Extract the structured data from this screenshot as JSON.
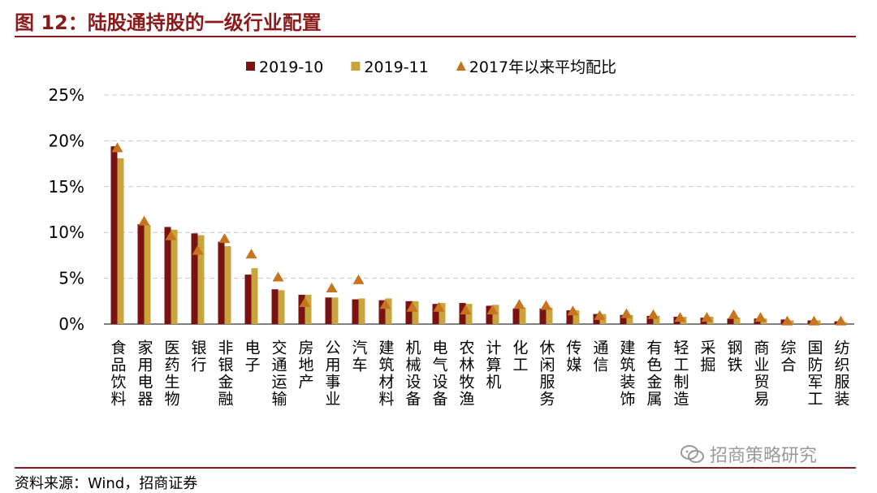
{
  "header": {
    "title": "图 12：陆股通持股的一级行业配置"
  },
  "footer": {
    "source": "资料来源：Wind，招商证券",
    "watermark": "招商策略研究"
  },
  "colors": {
    "series1": "#7a1212",
    "series2": "#c9a43d",
    "series3": "#c8731e",
    "grid": "#c8c8c8",
    "accent": "#8b1a1a"
  },
  "chart_data": {
    "type": "bar",
    "legend_position": "top",
    "grid": true,
    "ylim": [
      0,
      25
    ],
    "yticks": [
      "0%",
      "5%",
      "10%",
      "15%",
      "20%",
      "25%"
    ],
    "categories": [
      "食品饮料",
      "家用电器",
      "医药生物",
      "银行",
      "非银金融",
      "电子",
      "交通运输",
      "房地产",
      "公用事业",
      "汽车",
      "建筑材料",
      "机械设备",
      "电气设备",
      "农林牧渔",
      "计算机",
      "化工",
      "休闲服务",
      "传媒",
      "通信",
      "建筑装饰",
      "有色金属",
      "轻工制造",
      "采掘",
      "钢铁",
      "商业贸易",
      "综合",
      "国防军工",
      "纺织服装"
    ],
    "series": [
      {
        "name": "2019-10",
        "kind": "bar",
        "values": [
          19.4,
          10.9,
          10.6,
          9.9,
          9.0,
          5.4,
          3.8,
          3.2,
          2.9,
          2.7,
          2.6,
          2.5,
          2.2,
          2.3,
          2.0,
          1.7,
          1.7,
          1.5,
          1.1,
          1.0,
          0.9,
          0.8,
          0.7,
          0.6,
          0.6,
          0.5,
          0.4,
          0.3
        ]
      },
      {
        "name": "2019-11",
        "kind": "bar",
        "values": [
          18.1,
          10.8,
          10.3,
          9.7,
          8.5,
          6.1,
          3.7,
          3.2,
          2.9,
          2.8,
          2.8,
          2.5,
          2.3,
          2.2,
          2.1,
          1.8,
          1.8,
          1.5,
          1.1,
          1.0,
          0.9,
          0.8,
          0.8,
          0.7,
          0.6,
          0.4,
          0.4,
          0.2
        ]
      },
      {
        "name": "2017年以来平均配比",
        "kind": "marker",
        "values": [
          19.2,
          11.2,
          9.6,
          8.0,
          9.3,
          7.6,
          5.1,
          2.3,
          3.9,
          4.8,
          2.1,
          1.8,
          1.8,
          1.5,
          1.5,
          2.1,
          2.0,
          1.4,
          0.9,
          1.1,
          1.0,
          0.7,
          0.7,
          1.0,
          0.7,
          0.3,
          0.3,
          0.3
        ]
      }
    ]
  }
}
